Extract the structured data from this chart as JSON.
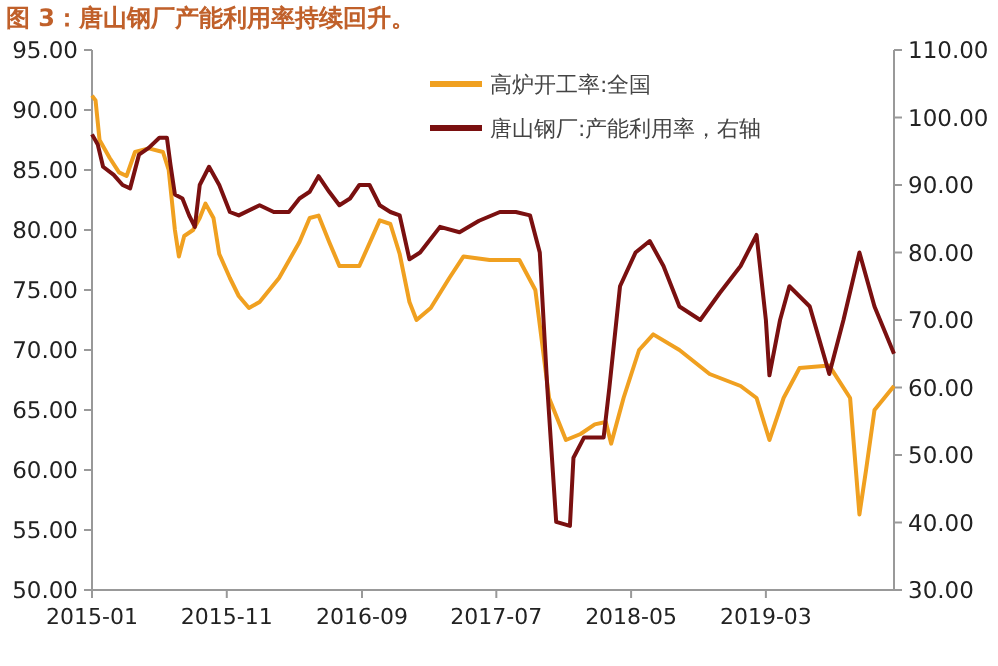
{
  "chart_data": {
    "type": "line",
    "title": "图 3：唐山钢厂产能利用率持续回升。",
    "xlim": [
      "2015-01-01",
      "2019-12-15"
    ],
    "xticks": [
      "2015-01",
      "2015-11",
      "2016-09",
      "2017-07",
      "2018-05",
      "2019-03"
    ],
    "ylim": [
      50,
      95
    ],
    "yticks": [
      {
        "value": 50,
        "label": "50.00"
      },
      {
        "value": 55,
        "label": "55.00"
      },
      {
        "value": 60,
        "label": "60.00"
      },
      {
        "value": 65,
        "label": "65.00"
      },
      {
        "value": 70,
        "label": "70.00"
      },
      {
        "value": 75,
        "label": "75.00"
      },
      {
        "value": 80,
        "label": "80.00"
      },
      {
        "value": 85,
        "label": "85.00"
      },
      {
        "value": 90,
        "label": "90.00"
      },
      {
        "value": 95,
        "label": "95.00"
      }
    ],
    "y2lim": [
      30,
      110
    ],
    "y2ticks": [
      {
        "value": 30,
        "label": "30.00"
      },
      {
        "value": 40,
        "label": "40.00"
      },
      {
        "value": 50,
        "label": "50.00"
      },
      {
        "value": 60,
        "label": "60.00"
      },
      {
        "value": 70,
        "label": "70.00"
      },
      {
        "value": 80,
        "label": "80.00"
      },
      {
        "value": 90,
        "label": "90.00"
      },
      {
        "value": 100,
        "label": "100.00"
      },
      {
        "value": 110,
        "label": "110.00"
      }
    ],
    "grid": false,
    "legend": "top right",
    "line_style": "solid",
    "series": [
      {
        "name": "高炉开工率:全国",
        "color": "#f0a020",
        "x": [
          "2015-01-01",
          "2015-01-09",
          "2015-01-18",
          "2015-02-10",
          "2015-03-03",
          "2015-03-20",
          "2015-04-08",
          "2015-05-09",
          "2015-06-10",
          "2015-06-23",
          "2015-07-07",
          "2015-07-16",
          "2015-07-28",
          "2015-08-17",
          "2015-09-01",
          "2015-09-14",
          "2015-10-02",
          "2015-10-15",
          "2015-11-08",
          "2015-11-28",
          "2015-12-21",
          "2016-01-14",
          "2016-02-27",
          "2016-04-13",
          "2016-05-06",
          "2016-05-26",
          "2016-06-19",
          "2016-07-12",
          "2016-08-26",
          "2016-10-11",
          "2016-11-04",
          "2016-11-25",
          "2016-12-17",
          "2017-01-02",
          "2017-02-03",
          "2017-03-17",
          "2017-04-18",
          "2017-06-16",
          "2017-08-22",
          "2017-09-27",
          "2017-10-28",
          "2017-12-05",
          "2018-01-07",
          "2018-02-08",
          "2018-03-05",
          "2018-03-17",
          "2018-04-14",
          "2018-05-19",
          "2018-06-20",
          "2018-08-18",
          "2018-10-25",
          "2019-01-03",
          "2019-02-08",
          "2019-03-09",
          "2019-04-10",
          "2019-05-16",
          "2019-07-22",
          "2019-09-07",
          "2019-09-20",
          "2019-09-28",
          "2019-10-13",
          "2019-11-01",
          "2019-12-15"
        ],
        "values": [
          91.2,
          90.8,
          87.5,
          86,
          84.8,
          84.5,
          86.5,
          86.8,
          86.5,
          85,
          80,
          77.8,
          79.5,
          80,
          81,
          82.2,
          81,
          78,
          76,
          74.5,
          73.5,
          74,
          76,
          79,
          81,
          81.2,
          79,
          77,
          77,
          80.8,
          80.5,
          78,
          74,
          72.5,
          73.5,
          76,
          77.8,
          77.5,
          77.5,
          75,
          66,
          62.5,
          63,
          63.8,
          64,
          62.2,
          66,
          70,
          71.3,
          70,
          68,
          67,
          66,
          62.5,
          66,
          68.5,
          68.7,
          66,
          60,
          56.3,
          60,
          65,
          67
        ]
      },
      {
        "name": "唐山钢厂:产能利用率，右轴",
        "color": "#7a1010",
        "axis": "y2",
        "x": [
          "2015-01-01",
          "2015-01-14",
          "2015-01-26",
          "2015-02-19",
          "2015-03-11",
          "2015-03-28",
          "2015-04-17",
          "2015-05-09",
          "2015-06-02",
          "2015-06-19",
          "2015-06-27",
          "2015-07-07",
          "2015-07-24",
          "2015-08-08",
          "2015-08-21",
          "2015-09-01",
          "2015-09-22",
          "2015-10-15",
          "2015-11-08",
          "2015-11-28",
          "2016-01-14",
          "2016-02-15",
          "2016-03-20",
          "2016-04-13",
          "2016-05-06",
          "2016-05-26",
          "2016-06-19",
          "2016-07-12",
          "2016-08-05",
          "2016-08-26",
          "2016-09-18",
          "2016-10-11",
          "2016-11-04",
          "2016-11-25",
          "2016-12-17",
          "2017-01-10",
          "2017-02-24",
          "2017-04-09",
          "2017-05-23",
          "2017-07-09",
          "2017-08-14",
          "2017-09-15",
          "2017-10-07",
          "2017-10-24",
          "2017-11-13",
          "2017-12-14",
          "2017-12-22",
          "2018-01-15",
          "2018-02-28",
          "2018-03-13",
          "2018-04-06",
          "2018-05-11",
          "2018-06-12",
          "2018-07-13",
          "2018-08-18",
          "2018-10-04",
          "2018-11-17",
          "2019-01-03",
          "2019-02-08",
          "2019-03-01",
          "2019-03-09",
          "2019-04-02",
          "2019-04-23",
          "2019-06-08",
          "2019-07-22",
          "2019-08-23",
          "2019-09-28",
          "2019-11-01",
          "2019-12-15"
        ],
        "values": [
          97.5,
          96,
          92.7,
          91.5,
          90,
          89.5,
          94.5,
          95.5,
          97,
          97,
          93,
          88.6,
          88,
          85.5,
          83.8,
          90,
          92.7,
          90,
          86,
          85.5,
          87,
          86,
          86,
          88,
          89,
          91.3,
          89,
          87,
          88,
          90,
          90,
          87,
          86,
          85.5,
          79,
          80,
          83.8,
          83,
          84.7,
          86,
          86,
          85.5,
          80,
          60,
          40.1,
          39.5,
          49.6,
          52.6,
          52.6,
          60,
          75,
          80,
          81.7,
          78,
          72,
          70,
          74,
          78,
          82.6,
          70,
          61.8,
          70,
          75,
          72,
          62,
          70,
          80,
          72,
          65
        ]
      }
    ]
  }
}
